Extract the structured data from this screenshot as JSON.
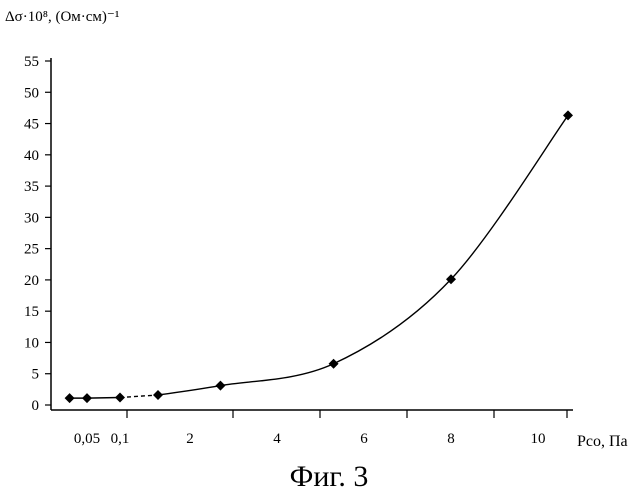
{
  "chart_data": {
    "type": "line",
    "title": "",
    "ylabel": "Δσ·10⁸, (Ом·см)⁻¹",
    "xlabel": "Pco, Па",
    "caption": "Фиг. 3",
    "ylim": [
      0,
      55
    ],
    "yticks": [
      "0",
      "5",
      "10",
      "15",
      "20",
      "25",
      "30",
      "35",
      "40",
      "45",
      "50",
      "55"
    ],
    "xticks": [
      "0,05",
      "0,1",
      "2",
      "4",
      "6",
      "8",
      "10"
    ],
    "x_axis_note": "broken axis: 0–0.1 compressed, then linear 1–10",
    "grid": false,
    "legend": "none",
    "series": [
      {
        "x": [
          0.02,
          0.05,
          0.1,
          1.2,
          2.7,
          5.3,
          8.0,
          10.7
        ],
        "values": [
          1.1,
          1.1,
          1.2,
          1.6,
          3.1,
          6.6,
          20.1,
          46.3
        ]
      }
    ],
    "segment_style": "dashed between x=0.1 and x=1.2, solid elsewhere",
    "colors": {
      "line": "#000000",
      "marker": "#000000"
    }
  }
}
